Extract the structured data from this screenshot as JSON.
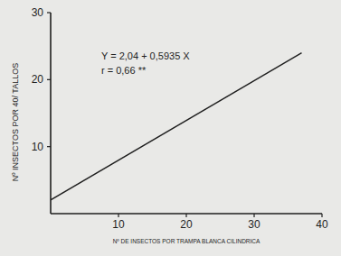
{
  "chart_data": {
    "type": "line",
    "x_label": "Nº DE INSECTOS POR TRAMPA BLANCA CILINDRICA",
    "y_label": "Nº INSECTOS POR 40/ TALLOS",
    "annotations": [
      "Y = 2,04 + 0,5935 X",
      "r = 0,66 **"
    ],
    "x": [
      0,
      37
    ],
    "values": [
      2.04,
      24.0
    ],
    "color": "#1e1e1e",
    "xlim": [
      0,
      40
    ],
    "xticks": [
      10,
      20,
      30,
      40
    ],
    "ylim": [
      0,
      30
    ],
    "yticks": [
      10,
      20,
      30
    ],
    "grid": false
  }
}
